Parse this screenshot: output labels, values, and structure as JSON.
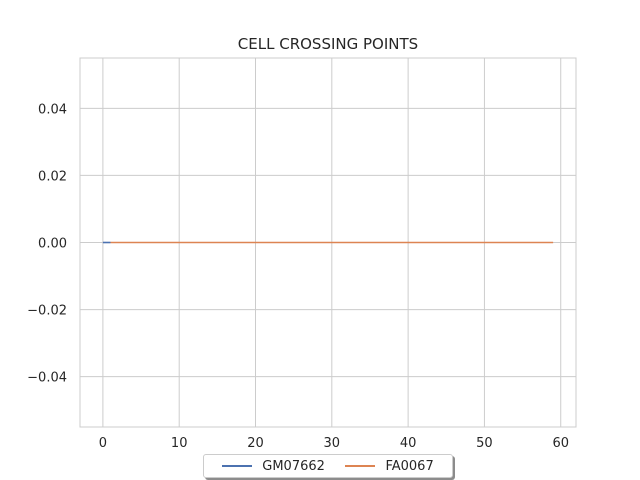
{
  "chart_data": {
    "type": "line",
    "title": "CELL CROSSING POINTS",
    "xlabel": "",
    "ylabel": "",
    "xlim": [
      -3,
      62
    ],
    "ylim": [
      -0.055,
      0.055
    ],
    "x_ticks": [
      0,
      10,
      20,
      30,
      40,
      50,
      60
    ],
    "x_tick_labels": [
      "0",
      "10",
      "20",
      "30",
      "40",
      "50",
      "60"
    ],
    "y_ticks": [
      0.04,
      0.02,
      0.0,
      -0.02,
      -0.04
    ],
    "y_tick_labels": [
      "0.04",
      "0.02",
      "0.00",
      "−0.02",
      "−0.04"
    ],
    "grid": true,
    "legend_placement": "bottom-center",
    "series": [
      {
        "name": "GM07662",
        "color": "#4c72b0",
        "x": [
          0,
          1
        ],
        "y": [
          0,
          0
        ]
      },
      {
        "name": "FA0067",
        "color": "#dd8452",
        "x": [
          1,
          59
        ],
        "y": [
          0,
          0
        ]
      }
    ]
  }
}
